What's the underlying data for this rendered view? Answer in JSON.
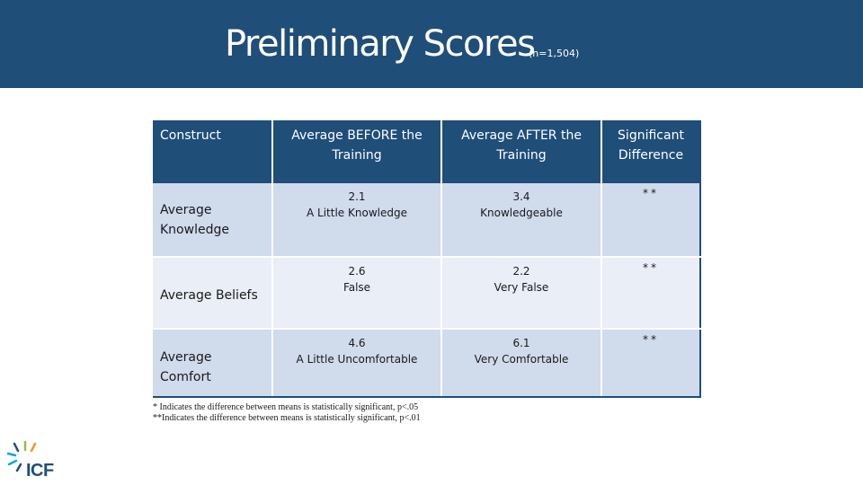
{
  "header": {
    "title": "Preliminary Scores",
    "subtitle": "(n=1,504)"
  },
  "table": {
    "columns": [
      "Construct",
      "Average BEFORE the Training",
      "Average AFTER the Training",
      "Significant Difference"
    ],
    "rows": [
      {
        "construct": "Average Knowledge",
        "before_value": "2.1",
        "before_label": "A Little Knowledge",
        "after_value": "3.4",
        "after_label": "Knowledgeable",
        "significance": "**"
      },
      {
        "construct": "Average Beliefs",
        "before_value": "2.6",
        "before_label": "False",
        "after_value": "2.2",
        "after_label": "Very False",
        "significance": "**"
      },
      {
        "construct": "Average Comfort",
        "before_value": "4.6",
        "before_label": "A Little Uncomfortable",
        "after_value": "6.1",
        "after_label": "Very Comfortable",
        "significance": "**"
      }
    ]
  },
  "footnotes": [
    "* Indicates the difference between means is statistically significant, p<.05",
    "**Indicates the difference between means is statistically significant, p<.01"
  ],
  "logo": {
    "text": "ICF",
    "colors": [
      "#1f4e79",
      "#8dc63f",
      "#00a9e0",
      "#f7941d"
    ]
  },
  "colors": {
    "header_bg": "#1f4e79",
    "row_dark": "#d0dbec",
    "row_light": "#e9eef7"
  }
}
